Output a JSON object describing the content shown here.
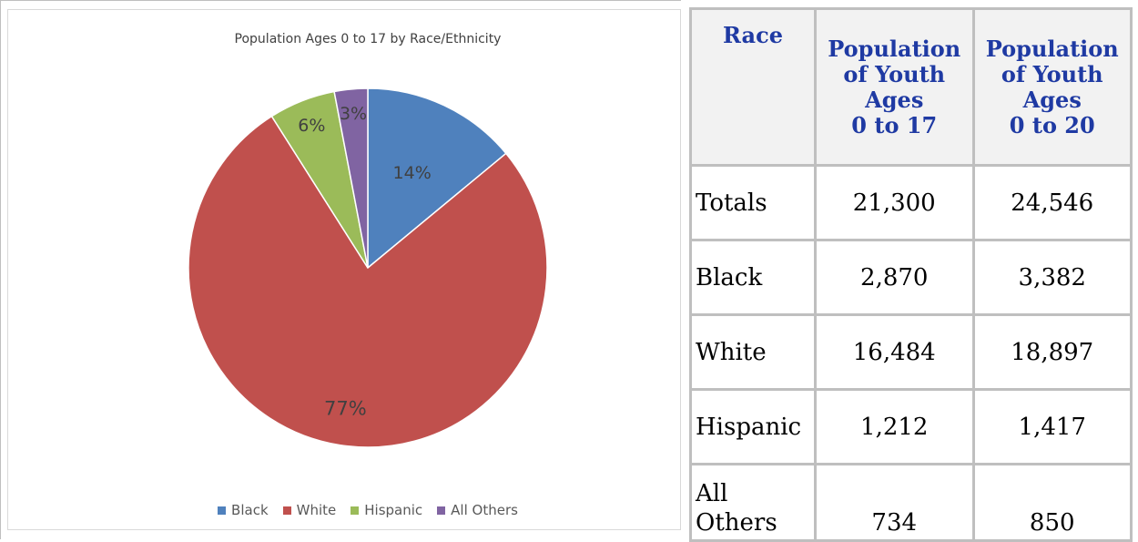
{
  "chart": {
    "title": "Population Ages 0 to 17 by Race/Ethnicity"
  },
  "chart_data": {
    "type": "pie",
    "title": "Population Ages 0 to 17 by Race/Ethnicity",
    "categories": [
      "Black",
      "White",
      "Hispanic",
      "All Others"
    ],
    "values": [
      14,
      77,
      6,
      3
    ],
    "labels": [
      "14%",
      "77%",
      "6%",
      "3%"
    ],
    "colors": [
      "#4f81bd",
      "#c0504d",
      "#9bbb59",
      "#8064a2"
    ],
    "legend_position": "bottom"
  },
  "table": {
    "headers": [
      "Race",
      "Population of Youth Ages 0 to 17",
      "Population of Youth Ages 0 to 20"
    ],
    "header_lines": [
      [
        "Race"
      ],
      [
        "Population",
        "of Youth",
        "Ages",
        "0 to 17"
      ],
      [
        "Population",
        "of Youth",
        "Ages",
        "0 to 20"
      ]
    ],
    "rows": [
      {
        "label": "Totals",
        "v17": "21,300",
        "v20": "24,546"
      },
      {
        "label": "Black",
        "v17": "2,870",
        "v20": "3,382"
      },
      {
        "label": "White",
        "v17": "16,484",
        "v20": "18,897"
      },
      {
        "label": "Hispanic",
        "v17": "1,212",
        "v20": "1,417"
      },
      {
        "label": "All Others",
        "v17": "734",
        "v20": "850"
      }
    ]
  }
}
